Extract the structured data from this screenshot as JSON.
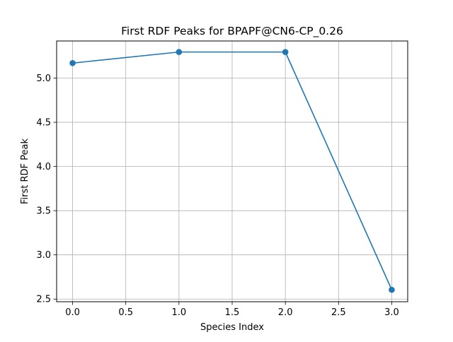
{
  "chart_data": {
    "type": "line",
    "title": "First RDF Peaks for BPAPF@CN6-CP_0.26",
    "xlabel": "Species Index",
    "ylabel": "First RDF Peak",
    "x": [
      0,
      1,
      2,
      3
    ],
    "series": [
      {
        "values": [
          5.17,
          5.295,
          5.295,
          2.605
        ],
        "color": "#1f77b4",
        "marker": "circle"
      }
    ],
    "xlim": [
      -0.15,
      3.15
    ],
    "ylim": [
      2.47,
      5.42
    ],
    "xticks": [
      "0.0",
      "0.5",
      "1.0",
      "1.5",
      "2.0",
      "2.5",
      "3.0"
    ],
    "yticks": [
      "2.5",
      "3.0",
      "3.5",
      "4.0",
      "4.5",
      "5.0"
    ],
    "grid": true
  }
}
